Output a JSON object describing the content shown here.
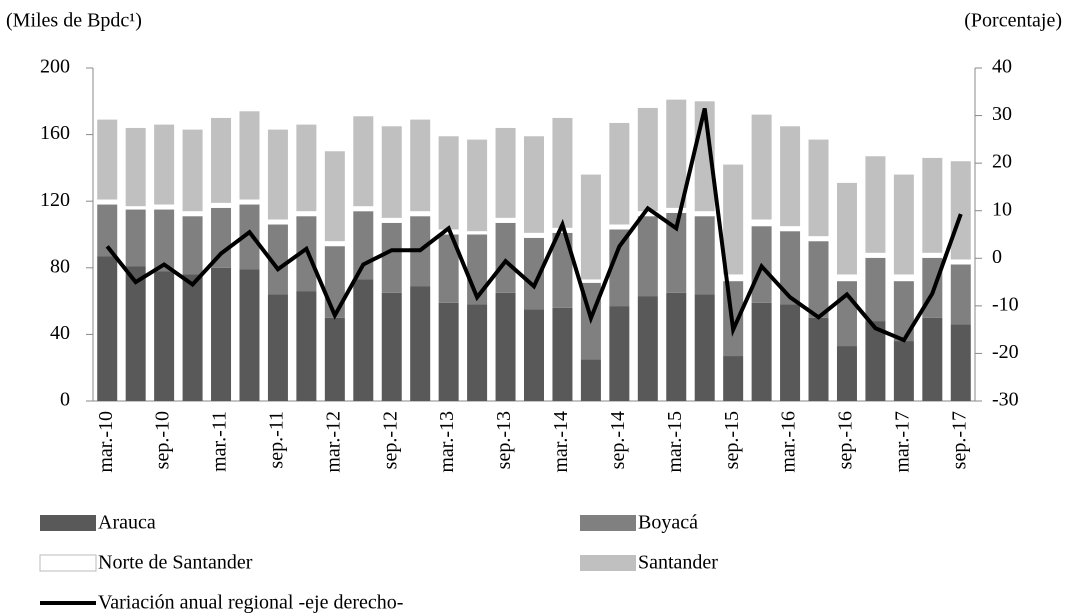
{
  "chart_data": {
    "type": "bar",
    "stacked": true,
    "y_label": "(Miles de Bpdc¹)",
    "y2_label": "(Porcentaje)",
    "categories": [
      "mar.-10",
      null,
      "sep.-10",
      null,
      "mar.-11",
      null,
      "sep.-11",
      null,
      "mar.-12",
      null,
      "sep.-12",
      null,
      "mar.-13",
      null,
      "sep.-13",
      null,
      "mar.-14",
      null,
      "sep.-14",
      null,
      "mar.-15",
      null,
      "sep.-15",
      null,
      "mar.-16",
      null,
      "sep.-16",
      null,
      "mar.-17",
      null,
      "sep.-17"
    ],
    "series": [
      {
        "name": "Arauca",
        "color": "#595959",
        "values": [
          87,
          81,
          78,
          76,
          80,
          79,
          64,
          66,
          50,
          73,
          65,
          69,
          59,
          58,
          65,
          55,
          56,
          25,
          57,
          63,
          65,
          64,
          27,
          59,
          58,
          50,
          33,
          48,
          36,
          50,
          46
        ]
      },
      {
        "name": "Boyacá",
        "color": "#808080",
        "values": [
          31,
          34,
          37,
          35,
          36,
          39,
          42,
          45,
          43,
          41,
          42,
          42,
          41,
          42,
          42,
          43,
          45,
          46,
          46,
          48,
          48,
          47,
          45,
          46,
          44,
          46,
          39,
          38,
          36,
          36,
          36
        ]
      },
      {
        "name": "Norte de Santander",
        "color": "#ffffff",
        "values": [
          3,
          2,
          3,
          3,
          3,
          3,
          3,
          3,
          3,
          3,
          3,
          3,
          3,
          2,
          3,
          3,
          3,
          2,
          3,
          3,
          3,
          3,
          4,
          4,
          3,
          3,
          4,
          3,
          4,
          3,
          3
        ]
      },
      {
        "name": "Santander",
        "color": "#c0c0c0",
        "values": [
          48,
          47,
          48,
          49,
          51,
          53,
          54,
          52,
          54,
          54,
          55,
          55,
          56,
          55,
          54,
          58,
          66,
          63,
          61,
          62,
          65,
          66,
          66,
          63,
          60,
          58,
          55,
          58,
          60,
          57,
          59
        ]
      },
      {
        "name": "Variación anual regional -eje derecho-",
        "color": "#000000",
        "type": "line",
        "axis": "y2",
        "values": [
          2.5,
          -5,
          -1.3,
          -5.5,
          1,
          5.5,
          -2.3,
          2,
          -12,
          -1.3,
          1.7,
          1.7,
          6.3,
          -8.2,
          -0.6,
          -5.9,
          7.1,
          -12.6,
          2.5,
          10.5,
          6.3,
          31.5,
          -15,
          -1.7,
          -8.2,
          -12.4,
          -7.6,
          -14.7,
          -17.2,
          -7.4,
          9.3
        ]
      }
    ],
    "ylim": [
      0,
      200
    ],
    "yticks": [
      0,
      40,
      80,
      120,
      160,
      200
    ],
    "y2lim": [
      -30,
      40
    ],
    "y2ticks": [
      -30,
      -20,
      -10,
      0,
      10,
      20,
      30,
      40
    ],
    "grid": false,
    "legend": "bottom"
  }
}
